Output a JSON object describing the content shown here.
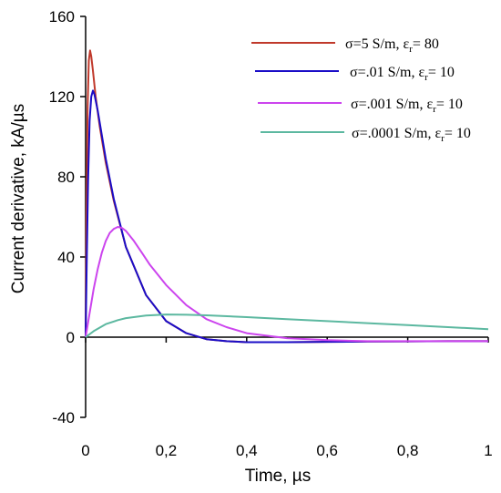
{
  "chart_data": {
    "type": "line",
    "title": "",
    "xlabel": "Time, µs",
    "ylabel": "Current derivative, kA/µs",
    "xlim": [
      0,
      1
    ],
    "ylim": [
      -40,
      160
    ],
    "xticks": [
      0,
      0.2,
      0.4,
      0.6,
      0.8,
      1
    ],
    "xtick_labels": [
      "0",
      "0,2",
      "0,4",
      "0,6",
      "0,8",
      "1"
    ],
    "yticks": [
      -40,
      0,
      40,
      80,
      120,
      160
    ],
    "ytick_labels": [
      "-40",
      "0",
      "40",
      "80",
      "120",
      "160"
    ],
    "grid": false,
    "legend_position": "top-right",
    "series": [
      {
        "name": "σ=5 S/m, εr= 80",
        "legend_main": "σ=5 S/m, ε",
        "legend_sub": "r",
        "legend_tail": "= 80",
        "color": "#c0392b",
        "x": [
          0,
          0.002,
          0.005,
          0.008,
          0.011,
          0.014,
          0.018,
          0.025,
          0.035,
          0.05,
          0.07,
          0.1,
          0.15,
          0.2,
          0.25,
          0.3,
          0.35,
          0.4,
          0.45,
          0.5,
          0.6,
          0.7,
          0.8,
          0.9,
          1.0
        ],
        "y": [
          0,
          60,
          115,
          138,
          143,
          140,
          133,
          120,
          105,
          87,
          68,
          45,
          21,
          8,
          2,
          -1,
          -2,
          -2.5,
          -2.5,
          -2.5,
          -2.3,
          -2.2,
          -2.1,
          -2.0,
          -2.0
        ]
      },
      {
        "name": "σ=.01 S/m, εr= 10",
        "legend_main": "σ=.01 S/m, ε",
        "legend_sub": "r",
        "legend_tail": "= 10",
        "color": "#1a0dc7",
        "x": [
          0,
          0.003,
          0.006,
          0.01,
          0.014,
          0.018,
          0.022,
          0.03,
          0.04,
          0.05,
          0.07,
          0.1,
          0.15,
          0.2,
          0.25,
          0.3,
          0.35,
          0.4,
          0.45,
          0.5,
          0.6,
          0.7,
          0.8,
          0.9,
          1.0
        ],
        "y": [
          0,
          40,
          78,
          108,
          120,
          123,
          121,
          113,
          101,
          89,
          69,
          45,
          21,
          8,
          2,
          -1,
          -2,
          -2.5,
          -2.5,
          -2.5,
          -2.3,
          -2.2,
          -2.1,
          -2.0,
          -2.0
        ]
      },
      {
        "name": "σ=.001 S/m, εr= 10",
        "legend_main": "σ=.001 S/m, ε",
        "legend_sub": "r",
        "legend_tail": "= 10",
        "color": "#cc44ee",
        "x": [
          0,
          0.01,
          0.02,
          0.03,
          0.04,
          0.05,
          0.06,
          0.07,
          0.08,
          0.09,
          0.1,
          0.12,
          0.14,
          0.16,
          0.2,
          0.25,
          0.3,
          0.35,
          0.4,
          0.5,
          0.6,
          0.7,
          0.8,
          0.9,
          1.0
        ],
        "y": [
          0,
          12,
          24,
          34,
          42,
          48,
          52,
          54,
          55,
          54.5,
          53,
          48,
          42,
          36,
          26,
          16,
          9,
          5,
          2,
          -0.5,
          -1.5,
          -2,
          -2,
          -2,
          -2
        ]
      },
      {
        "name": "σ=.0001 S/m, εr= 10",
        "legend_main": "σ=.0001 S/m, ε",
        "legend_sub": "r",
        "legend_tail": "= 10",
        "color": "#5cb8a0",
        "x": [
          0,
          0.02,
          0.05,
          0.08,
          0.1,
          0.15,
          0.2,
          0.25,
          0.3,
          0.4,
          0.5,
          0.6,
          0.7,
          0.8,
          0.9,
          1.0
        ],
        "y": [
          0,
          3,
          6.5,
          8.5,
          9.5,
          10.8,
          11.3,
          11.2,
          10.9,
          10,
          9,
          8,
          7,
          6,
          5,
          4
        ]
      }
    ]
  }
}
